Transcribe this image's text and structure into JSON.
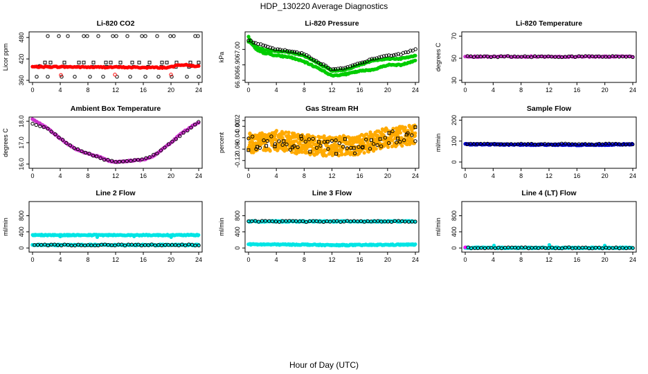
{
  "figure": {
    "title": "HDP_130220  Average Diagnostics",
    "xlabel": "Hour of Day (UTC)"
  },
  "chart_data": [
    {
      "type": "scatter",
      "title": "Li-820 CO2",
      "ylabel": "Licor ppm",
      "xlim": [
        0,
        24
      ],
      "ylim": [
        360,
        490
      ],
      "xticks": [
        0,
        4,
        8,
        12,
        16,
        20,
        24
      ],
      "yticks": [
        {
          "v": 360,
          "label": "360"
        },
        {
          "v": 420,
          "label": "420"
        },
        {
          "v": 480,
          "label": "480"
        }
      ],
      "series": [
        {
          "marker": "circle",
          "color": "#000000",
          "x": [
            1,
            2.2,
            3.8,
            5.1,
            7.4,
            7.9,
            9.5,
            11.6,
            12.1,
            13.7,
            15.8,
            16.3,
            18.0,
            19.9,
            20.4,
            23.5,
            23.9
          ],
          "y": [
            400,
            484,
            484,
            484,
            484,
            484,
            484,
            484,
            484,
            484,
            484,
            484,
            484,
            484,
            484,
            484,
            484
          ]
        },
        {
          "marker": "circle",
          "color": "#000000",
          "x": [
            0.6,
            2.2,
            4.2,
            6.1,
            8.3,
            10.2,
            12.2,
            14.1,
            16.3,
            18.2,
            20.1,
            22.3,
            24
          ],
          "y": [
            370,
            370,
            370,
            370,
            370,
            370,
            370,
            370,
            370,
            370,
            370,
            370,
            370
          ]
        },
        {
          "marker": "square",
          "color": "#000000",
          "x": [
            1.8,
            2.6,
            4.6,
            6.7,
            7.4,
            8.8,
            10.6,
            11.3,
            12.7,
            14.4,
            15.4,
            16.9,
            18.7,
            19.4,
            20.8,
            22.8,
            24
          ],
          "y": [
            410,
            410,
            410,
            410,
            410,
            410,
            410,
            410,
            410,
            410,
            410,
            410,
            410,
            410,
            410,
            410,
            410
          ]
        },
        {
          "marker": "square",
          "color": "#000000",
          "x": [
            0.8,
            2.4,
            4.8,
            6.6,
            8.6,
            10.7,
            12.6,
            14.6,
            16.7,
            18.6,
            20.7,
            22.6
          ],
          "y": [
            398,
            398,
            398,
            398,
            398,
            398,
            398,
            398,
            398,
            398,
            398,
            398
          ]
        },
        {
          "marker": "circle",
          "color": "#ff0000",
          "x": [
            4.1,
            11.9,
            20.0
          ],
          "y": [
            375,
            376,
            376
          ]
        },
        {
          "marker": "filled",
          "color": "#ff0000",
          "density": 120,
          "x": [
            0,
            4,
            8,
            12,
            16,
            18,
            19.5,
            20.3,
            21,
            22,
            23,
            24
          ],
          "y": [
            398,
            398,
            397,
            397,
            396,
            396,
            396,
            398,
            404,
            403,
            401,
            399
          ]
        }
      ]
    },
    {
      "type": "scatter",
      "title": "Li-820 Pressure",
      "ylabel": "kPa",
      "xlim": [
        0,
        24
      ],
      "ylim": [
        66.8,
        67.1
      ],
      "xticks": [
        0,
        4,
        8,
        12,
        16,
        20,
        24
      ],
      "yticks": [
        {
          "v": 66.8,
          "label": "66.80"
        },
        {
          "v": 66.9,
          "label": "66.90"
        },
        {
          "v": 67.0,
          "label": "67.00"
        }
      ],
      "series": [
        {
          "marker": "filled",
          "color": "#00cc00",
          "density": 160,
          "x": [
            0,
            1,
            2,
            4,
            6,
            8,
            10,
            12,
            14,
            16,
            18,
            20,
            22,
            24
          ],
          "y": [
            67.08,
            67.0,
            66.98,
            66.96,
            66.95,
            66.92,
            66.88,
            66.83,
            66.84,
            66.86,
            66.87,
            66.9,
            66.9,
            66.93
          ]
        },
        {
          "marker": "filled",
          "color": "#00cc00",
          "density": 160,
          "x": [
            0,
            1,
            2,
            4,
            6,
            8,
            10,
            12,
            14,
            16,
            18,
            20,
            22,
            24
          ],
          "y": [
            67.05,
            67.02,
            67.0,
            66.99,
            66.98,
            66.96,
            66.91,
            66.86,
            66.87,
            66.9,
            66.93,
            66.94,
            66.94,
            66.96
          ]
        },
        {
          "marker": "circle",
          "color": "#000000",
          "density": 70,
          "x": [
            0,
            1,
            2,
            4,
            6,
            8,
            10,
            12,
            14,
            16,
            18,
            20,
            22,
            24
          ],
          "y": [
            67.06,
            67.04,
            67.03,
            67.0,
            66.99,
            66.97,
            66.92,
            66.87,
            66.88,
            66.91,
            66.94,
            66.96,
            66.97,
            67.0
          ]
        }
      ]
    },
    {
      "type": "scatter",
      "title": "Li-820 Temperature",
      "ylabel": "degrees C",
      "xlim": [
        0,
        24
      ],
      "ylim": [
        30,
        72
      ],
      "xticks": [
        0,
        4,
        8,
        12,
        16,
        20,
        24
      ],
      "yticks": [
        {
          "v": 30,
          "label": "30"
        },
        {
          "v": 50,
          "label": "50"
        },
        {
          "v": 70,
          "label": "70"
        }
      ],
      "series": [
        {
          "marker": "filled",
          "color": "#cc33cc",
          "density": 90,
          "x": [
            0,
            24
          ],
          "y": [
            51.5,
            51.5
          ]
        },
        {
          "marker": "circle",
          "color": "#000000",
          "density": 50,
          "x": [
            0.3,
            24
          ],
          "y": [
            51.5,
            51.5
          ]
        }
      ]
    },
    {
      "type": "scatter",
      "title": "Ambient Box Temperature",
      "ylabel": "degrees C",
      "xlim": [
        0,
        24
      ],
      "ylim": [
        15.9,
        18.1
      ],
      "xticks": [
        0,
        4,
        8,
        12,
        16,
        20,
        24
      ],
      "yticks": [
        {
          "v": 16.0,
          "label": "16.0"
        },
        {
          "v": 17.0,
          "label": "17.0"
        },
        {
          "v": 18.0,
          "label": "18.0"
        }
      ],
      "series": [
        {
          "marker": "filled",
          "color": "#cc33cc",
          "density": 160,
          "x": [
            0,
            1,
            2,
            3,
            4,
            5,
            6,
            7,
            8,
            9,
            10,
            11,
            12,
            13,
            14,
            15,
            16,
            17,
            18,
            19,
            20,
            21,
            22,
            23,
            24
          ],
          "y": [
            18.1,
            17.9,
            17.7,
            17.45,
            17.2,
            16.95,
            16.75,
            16.6,
            16.5,
            16.4,
            16.3,
            16.15,
            16.1,
            16.12,
            16.15,
            16.18,
            16.2,
            16.3,
            16.5,
            16.75,
            17.0,
            17.3,
            17.55,
            17.75,
            17.95
          ]
        },
        {
          "marker": "circle",
          "color": "#000000",
          "density": 45,
          "x": [
            0,
            2,
            4,
            6,
            8,
            10,
            12,
            14,
            16,
            18,
            20,
            22,
            24
          ],
          "y": [
            17.9,
            17.7,
            17.2,
            16.75,
            16.5,
            16.25,
            16.1,
            16.15,
            16.2,
            16.5,
            17.0,
            17.5,
            17.95
          ]
        }
      ]
    },
    {
      "type": "scatter",
      "title": "Gas Stream RH",
      "ylabel": "percent",
      "xlim": [
        0,
        24
      ],
      "ylim": [
        -0.14,
        0.025
      ],
      "xticks": [
        0,
        4,
        8,
        12,
        16,
        20,
        24
      ],
      "yticks": [
        {
          "v": -0.12,
          "label": "-0.12"
        },
        {
          "v": -0.08,
          "label": "-0.08"
        },
        {
          "v": -0.04,
          "label": "-0.04"
        },
        {
          "v": 0.0,
          "label": "0.00"
        },
        {
          "v": 0.02,
          "label": "0.02"
        }
      ],
      "series": [
        {
          "marker": "filled",
          "color": "#ffaa00",
          "density": 700,
          "noise": 0.035,
          "x": [
            0,
            4,
            8,
            12,
            16,
            20,
            24
          ],
          "y": [
            -0.06,
            -0.05,
            -0.065,
            -0.07,
            -0.065,
            -0.04,
            -0.03
          ]
        },
        {
          "marker": "circle",
          "color": "#000000",
          "density": 45,
          "noise": 0.025,
          "x": [
            0,
            4,
            8,
            12,
            16,
            20,
            24
          ],
          "y": [
            -0.06,
            -0.05,
            -0.065,
            -0.07,
            -0.07,
            -0.04,
            -0.03
          ]
        },
        {
          "marker": "square",
          "color": "#000000",
          "density": 20,
          "noise": 0.03,
          "x": [
            0,
            4,
            8,
            12,
            16,
            20,
            24
          ],
          "y": [
            -0.06,
            -0.05,
            -0.06,
            -0.07,
            -0.07,
            -0.04,
            -0.02
          ]
        }
      ]
    },
    {
      "type": "scatter",
      "title": "Sample Flow",
      "ylabel": "ml/min",
      "xlim": [
        0,
        24
      ],
      "ylim": [
        -20,
        205
      ],
      "xticks": [
        0,
        4,
        8,
        12,
        16,
        20,
        24
      ],
      "yticks": [
        {
          "v": 0,
          "label": "0"
        },
        {
          "v": 100,
          "label": "100"
        },
        {
          "v": 200,
          "label": "200"
        }
      ],
      "series": [
        {
          "marker": "filled",
          "color": "#0000cc",
          "density": 200,
          "x": [
            0,
            4,
            8,
            12,
            16,
            20,
            24
          ],
          "y": [
            85,
            84,
            83,
            83,
            82,
            83,
            85
          ]
        },
        {
          "marker": "circle",
          "color": "#000000",
          "density": 50,
          "x": [
            0.3,
            24
          ],
          "y": [
            86,
            86
          ]
        }
      ]
    },
    {
      "type": "scatter",
      "title": "Line 2 Flow",
      "ylabel": "ml/min",
      "xlim": [
        0,
        24
      ],
      "ylim": [
        -50,
        1100
      ],
      "xticks": [
        0,
        4,
        8,
        12,
        16,
        20,
        24
      ],
      "yticks": [
        {
          "v": 0,
          "label": "0"
        },
        {
          "v": 400,
          "label": "400"
        },
        {
          "v": 800,
          "label": "800"
        }
      ],
      "series": [
        {
          "marker": "filled",
          "color": "#00e5e5",
          "density": 220,
          "x": [
            0,
            24
          ],
          "y": [
            320,
            320
          ]
        },
        {
          "marker": "filled",
          "color": "#00e5e5",
          "density": 4,
          "x": [
            4,
            12,
            20
          ],
          "y": [
            280,
            280,
            280
          ]
        },
        {
          "marker": "filled",
          "color": "#00e5e5",
          "density": 220,
          "x": [
            0,
            24
          ],
          "y": [
            75,
            75
          ]
        },
        {
          "marker": "circle",
          "color": "#000000",
          "density": 50,
          "x": [
            0.3,
            24
          ],
          "y": [
            75,
            75
          ]
        }
      ]
    },
    {
      "type": "scatter",
      "title": "Line 3 Flow",
      "ylabel": "ml/min",
      "xlim": [
        0,
        24
      ],
      "ylim": [
        -50,
        1100
      ],
      "xticks": [
        0,
        4,
        8,
        12,
        16,
        20,
        24
      ],
      "yticks": [
        {
          "v": 0,
          "label": "0"
        },
        {
          "v": 400,
          "label": "400"
        },
        {
          "v": 800,
          "label": "800"
        }
      ],
      "series": [
        {
          "marker": "filled",
          "color": "#00e5e5",
          "density": 220,
          "x": [
            0,
            24
          ],
          "y": [
            660,
            660
          ]
        },
        {
          "marker": "circle",
          "color": "#000000",
          "density": 50,
          "x": [
            0,
            24
          ],
          "y": [
            660,
            660
          ]
        },
        {
          "marker": "filled",
          "color": "#00e5e5",
          "density": 220,
          "x": [
            0,
            8,
            12,
            16,
            24
          ],
          "y": [
            90,
            85,
            70,
            75,
            85
          ]
        }
      ]
    },
    {
      "type": "scatter",
      "title": "Line 4 (LT) Flow",
      "ylabel": "ml/min",
      "xlim": [
        0,
        24
      ],
      "ylim": [
        -50,
        1100
      ],
      "xticks": [
        0,
        4,
        8,
        12,
        16,
        20,
        24
      ],
      "yticks": [
        {
          "v": 0,
          "label": "0"
        },
        {
          "v": 400,
          "label": "400"
        },
        {
          "v": 800,
          "label": "800"
        }
      ],
      "series": [
        {
          "marker": "filled",
          "color": "#00e5e5",
          "density": 220,
          "x": [
            0,
            24
          ],
          "y": [
            5,
            5
          ]
        },
        {
          "marker": "filled",
          "color": "#00e5e5",
          "density": 3,
          "x": [
            4.1,
            12,
            20
          ],
          "y": [
            70,
            70,
            70
          ]
        },
        {
          "marker": "filled",
          "color": "#ff00ff",
          "density": 1,
          "x": [
            0
          ],
          "y": [
            5
          ]
        },
        {
          "marker": "circle",
          "color": "#000000",
          "density": 50,
          "x": [
            0.4,
            24
          ],
          "y": [
            5,
            5
          ]
        }
      ]
    }
  ]
}
